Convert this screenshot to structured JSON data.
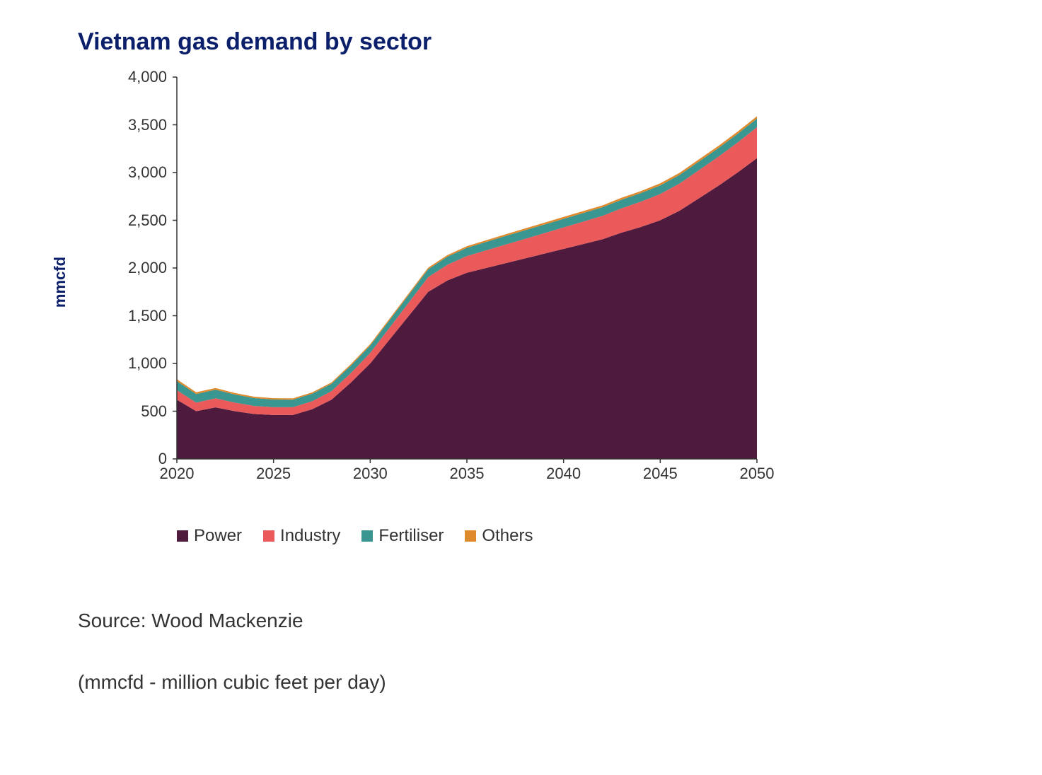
{
  "title": "Vietnam gas demand by sector",
  "title_color": "#0b1f6b",
  "title_fontsize": 34,
  "source": "Source: Wood Mackenzie",
  "footnote": "(mmcfd - million cubic feet per day)",
  "chart": {
    "type": "area",
    "ylabel": "mmcfd",
    "ylabel_color": "#0b1f6b",
    "ylabel_fontsize": 22,
    "xlim": [
      2020,
      2050
    ],
    "ylim": [
      0,
      4000
    ],
    "y_ticks": [
      0,
      500,
      1000,
      1500,
      2000,
      2500,
      3000,
      3500,
      4000
    ],
    "y_tick_labels": [
      "0",
      "500",
      "1,000",
      "1,500",
      "2,000",
      "2,500",
      "3,000",
      "3,500",
      "4,000"
    ],
    "x_ticks": [
      2020,
      2025,
      2030,
      2035,
      2040,
      2045,
      2050
    ],
    "x_tick_labels": [
      "2020",
      "2025",
      "2030",
      "2035",
      "2040",
      "2045",
      "2050"
    ],
    "tick_fontsize": 22,
    "tick_color": "#333333",
    "axis_color": "#333333",
    "background_color": "#ffffff",
    "grid": false,
    "years": [
      2020,
      2021,
      2022,
      2023,
      2024,
      2025,
      2026,
      2027,
      2028,
      2029,
      2030,
      2031,
      2032,
      2033,
      2034,
      2035,
      2036,
      2037,
      2038,
      2039,
      2040,
      2041,
      2042,
      2043,
      2044,
      2045,
      2046,
      2047,
      2048,
      2049,
      2050
    ],
    "series": [
      {
        "name": "Power",
        "color": "#4e1a3d",
        "values": [
          620,
          500,
          540,
          500,
          470,
          460,
          460,
          520,
          620,
          800,
          1000,
          1250,
          1500,
          1750,
          1870,
          1950,
          2000,
          2050,
          2100,
          2150,
          2200,
          2250,
          2300,
          2370,
          2430,
          2500,
          2600,
          2730,
          2860,
          3000,
          3150
        ]
      },
      {
        "name": "Industry",
        "color": "#ea5a5a",
        "values": [
          100,
          90,
          95,
          90,
          85,
          82,
          82,
          85,
          90,
          100,
          110,
          125,
          140,
          155,
          165,
          175,
          185,
          195,
          205,
          215,
          225,
          235,
          245,
          255,
          265,
          275,
          285,
          295,
          305,
          315,
          325
        ]
      },
      {
        "name": "Fertiliser",
        "color": "#3a9690",
        "values": [
          95,
          90,
          90,
          85,
          82,
          80,
          78,
          78,
          78,
          78,
          78,
          78,
          80,
          82,
          84,
          86,
          88,
          90,
          90,
          90,
          90,
          90,
          90,
          90,
          90,
          90,
          90,
          90,
          90,
          90,
          90
        ]
      },
      {
        "name": "Others",
        "color": "#e08a2e",
        "values": [
          20,
          18,
          18,
          16,
          15,
          14,
          14,
          14,
          14,
          15,
          15,
          16,
          16,
          17,
          17,
          18,
          18,
          18,
          19,
          19,
          20,
          20,
          20,
          21,
          21,
          22,
          22,
          23,
          23,
          24,
          25
        ]
      }
    ],
    "legend": {
      "fontsize": 24,
      "position": "bottom",
      "swatch_size": 16
    }
  }
}
